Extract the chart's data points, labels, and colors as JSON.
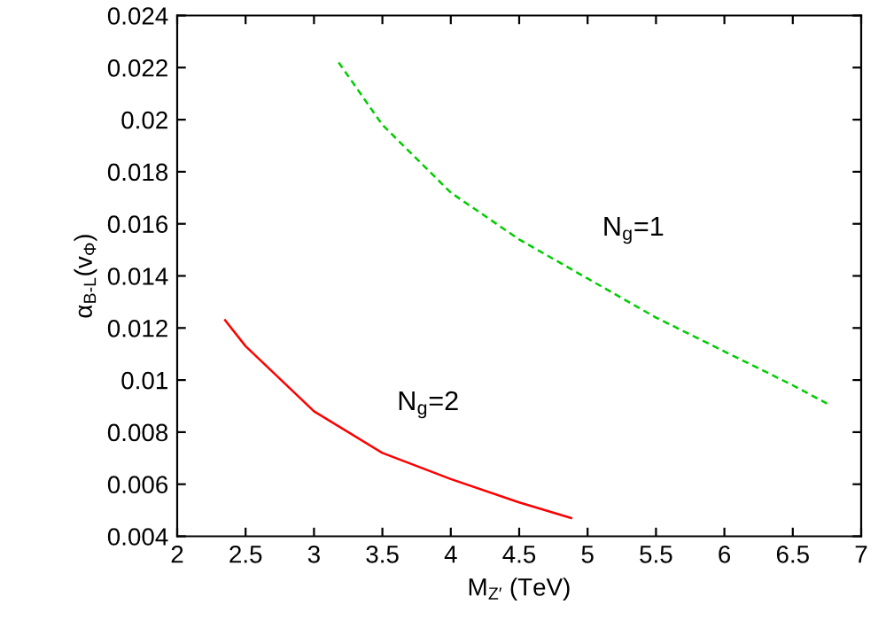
{
  "chart_data": {
    "type": "line",
    "xlabel": "M$_{Z′}$ (TeV)",
    "ylabel": "α$_{B‐L}$(v$_{Φ}$)",
    "series": [
      {
        "color": "#ff0000",
        "line_style": "solid",
        "x": [
          2.35,
          2.5,
          3,
          3.5,
          4,
          4.5,
          4.88
        ],
        "values": [
          0.0123,
          0.0113,
          0.0088,
          0.0072,
          0.0062,
          0.0053,
          0.0047
        ]
      },
      {
        "color": "#00cc00",
        "line_style": "dashed",
        "x": [
          3.18,
          3.5,
          4,
          4.5,
          5,
          5.5,
          6,
          6.5,
          6.75
        ],
        "values": [
          0.0222,
          0.0198,
          0.0172,
          0.0154,
          0.0139,
          0.0124,
          0.0111,
          0.0098,
          0.0091
        ]
      }
    ],
    "annotations": [
      "N$_{g}$=1",
      "N$_{g}$=2"
    ],
    "xlim": [
      2,
      7
    ],
    "xticks": [
      2,
      2.5,
      3,
      3.5,
      4,
      4.5,
      5,
      5.5,
      6,
      6.5,
      7
    ],
    "ylim": [
      0.004,
      0.024
    ],
    "yticks": [
      0.004,
      0.006,
      0.008,
      0.01,
      0.012,
      0.014,
      0.016,
      0.018,
      0.02,
      0.022,
      0.024
    ],
    "grid": false,
    "legend": false
  }
}
